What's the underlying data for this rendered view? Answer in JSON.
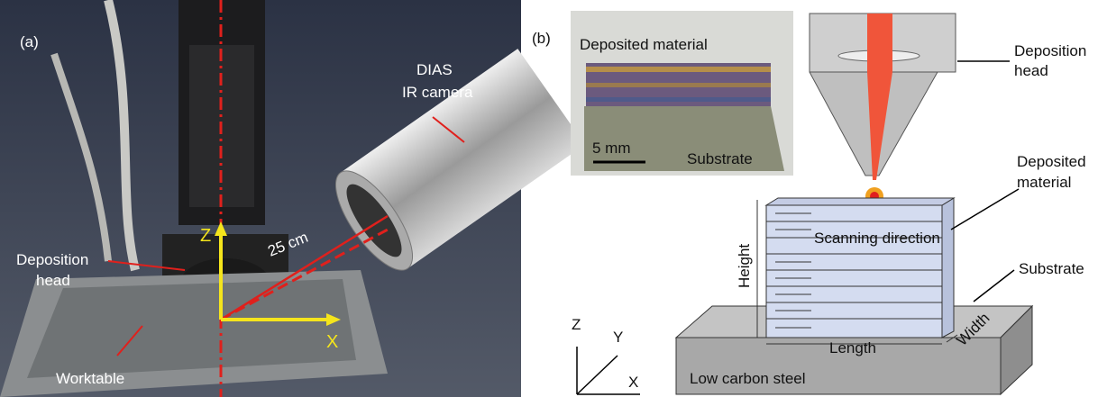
{
  "panel_a": {
    "label": "(a)",
    "camera": [
      "DIAS",
      "IR camera"
    ],
    "distance": "25 cm",
    "axis_z": "Z",
    "axis_x": "X",
    "head": [
      "Deposition",
      "head"
    ],
    "worktable": "Worktable"
  },
  "panel_b": {
    "label": "(b)",
    "inset": {
      "deposit": "Deposited material",
      "scale": "5 mm",
      "substrate": "Substrate"
    },
    "head": [
      "Deposition",
      "head"
    ],
    "deposit": [
      "Deposited",
      "material"
    ],
    "substrate": "Substrate",
    "scan": "Scanning direction",
    "height": "Height",
    "length": "Length",
    "width": "Width",
    "steel": "Low carbon steel",
    "axes": [
      "Z",
      "Y",
      "X"
    ]
  }
}
